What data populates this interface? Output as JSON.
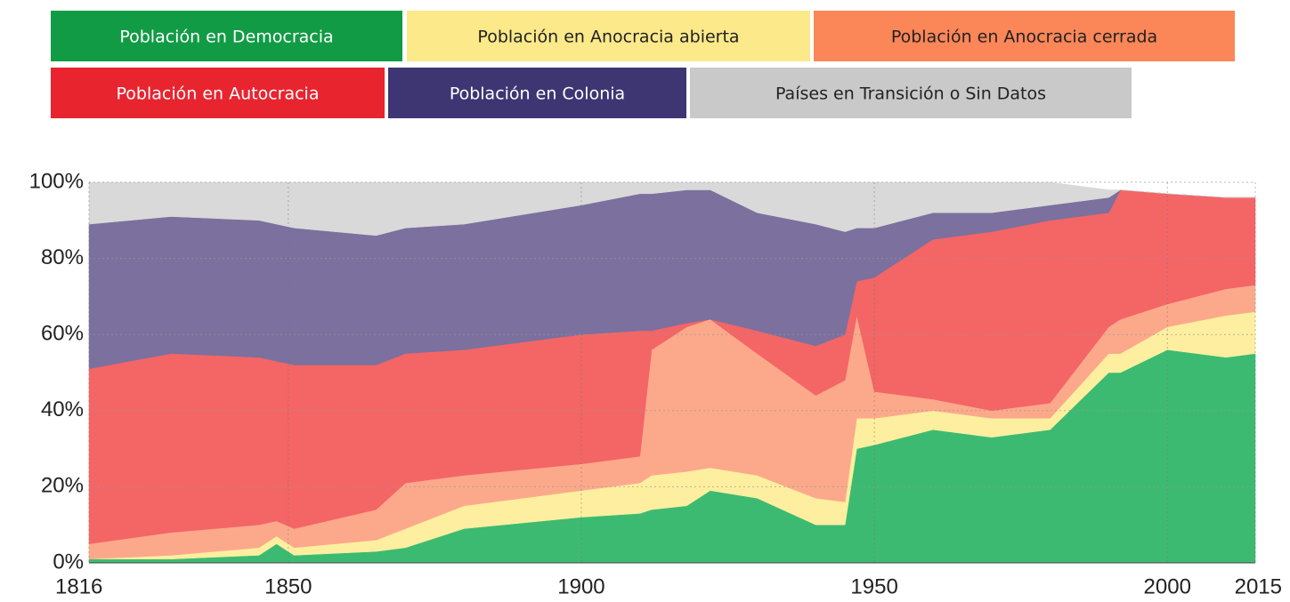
{
  "chart_data": {
    "type": "stacked_area",
    "x": [
      1816,
      1830,
      1845,
      1848,
      1851,
      1865,
      1870,
      1880,
      1900,
      1910,
      1912,
      1918,
      1922,
      1930,
      1940,
      1945,
      1947,
      1950,
      1960,
      1970,
      1980,
      1990,
      1992,
      2000,
      2010,
      2015
    ],
    "series": [
      {
        "name": "Población en Democracia",
        "color": "#3dba72",
        "legend_color": "#129b45",
        "legend_text": "#ffffff",
        "values": [
          1,
          1,
          2,
          5,
          2,
          3,
          4,
          9,
          12,
          13,
          14,
          15,
          19,
          17,
          10,
          10,
          30,
          31,
          35,
          33,
          35,
          50,
          50,
          56,
          54,
          55
        ]
      },
      {
        "name": "Población en Anocracia abierta",
        "color": "#fdef9f",
        "legend_color": "#fbe98a",
        "legend_text": "#222222",
        "values": [
          0,
          1,
          2,
          2,
          2,
          3,
          5,
          6,
          7,
          8,
          9,
          9,
          6,
          6,
          7,
          6,
          8,
          7,
          5,
          5,
          3,
          5,
          5,
          6,
          11,
          11
        ]
      },
      {
        "name": "Población en Anocracia cerrada",
        "color": "#fca98b",
        "legend_color": "#fb8658",
        "legend_text": "#222222",
        "values": [
          4,
          6,
          6,
          4,
          5,
          8,
          12,
          8,
          7,
          7,
          33,
          38,
          39,
          32,
          27,
          32,
          27,
          7,
          3,
          2,
          4,
          7,
          9,
          6,
          7,
          7
        ]
      },
      {
        "name": "Población en Autocracia",
        "color": "#f46566",
        "legend_color": "#e8242f",
        "legend_text": "#ffffff",
        "values": [
          46,
          47,
          44,
          42,
          43,
          38,
          34,
          33,
          34,
          33,
          5,
          1,
          0,
          6,
          13,
          12,
          9,
          30,
          42,
          47,
          48,
          30,
          34,
          29,
          24,
          23
        ]
      },
      {
        "name": "Población en Colonia",
        "color": "#7b709e",
        "legend_color": "#3d3673",
        "legend_text": "#ffffff",
        "values": [
          38,
          36,
          36,
          36,
          36,
          34,
          33,
          33,
          34,
          36,
          36,
          35,
          34,
          31,
          32,
          27,
          14,
          13,
          7,
          5,
          4,
          4,
          0,
          0,
          0,
          0
        ]
      },
      {
        "name": "Países en Transición o Sin Datos",
        "color": "#d9d9d9",
        "legend_color": "#c9c9c9",
        "legend_text": "#222222",
        "values": [
          11,
          9,
          10,
          11,
          12,
          14,
          12,
          11,
          6,
          3,
          3,
          2,
          2,
          8,
          11,
          13,
          12,
          12,
          8,
          8,
          6,
          2,
          0,
          0,
          0,
          0
        ]
      }
    ],
    "xlim": [
      1816,
      2015
    ],
    "xticks": [
      1816,
      1850,
      1900,
      1950,
      2000,
      2015
    ],
    "ylim": [
      0,
      100
    ],
    "yticks": [
      {
        "value": 0,
        "label": "0%"
      },
      {
        "value": 20,
        "label": "20%"
      },
      {
        "value": 40,
        "label": "40%"
      },
      {
        "value": 60,
        "label": "60%"
      },
      {
        "value": 80,
        "label": "80%"
      },
      {
        "value": 100,
        "label": "100%"
      }
    ],
    "grid": true
  }
}
